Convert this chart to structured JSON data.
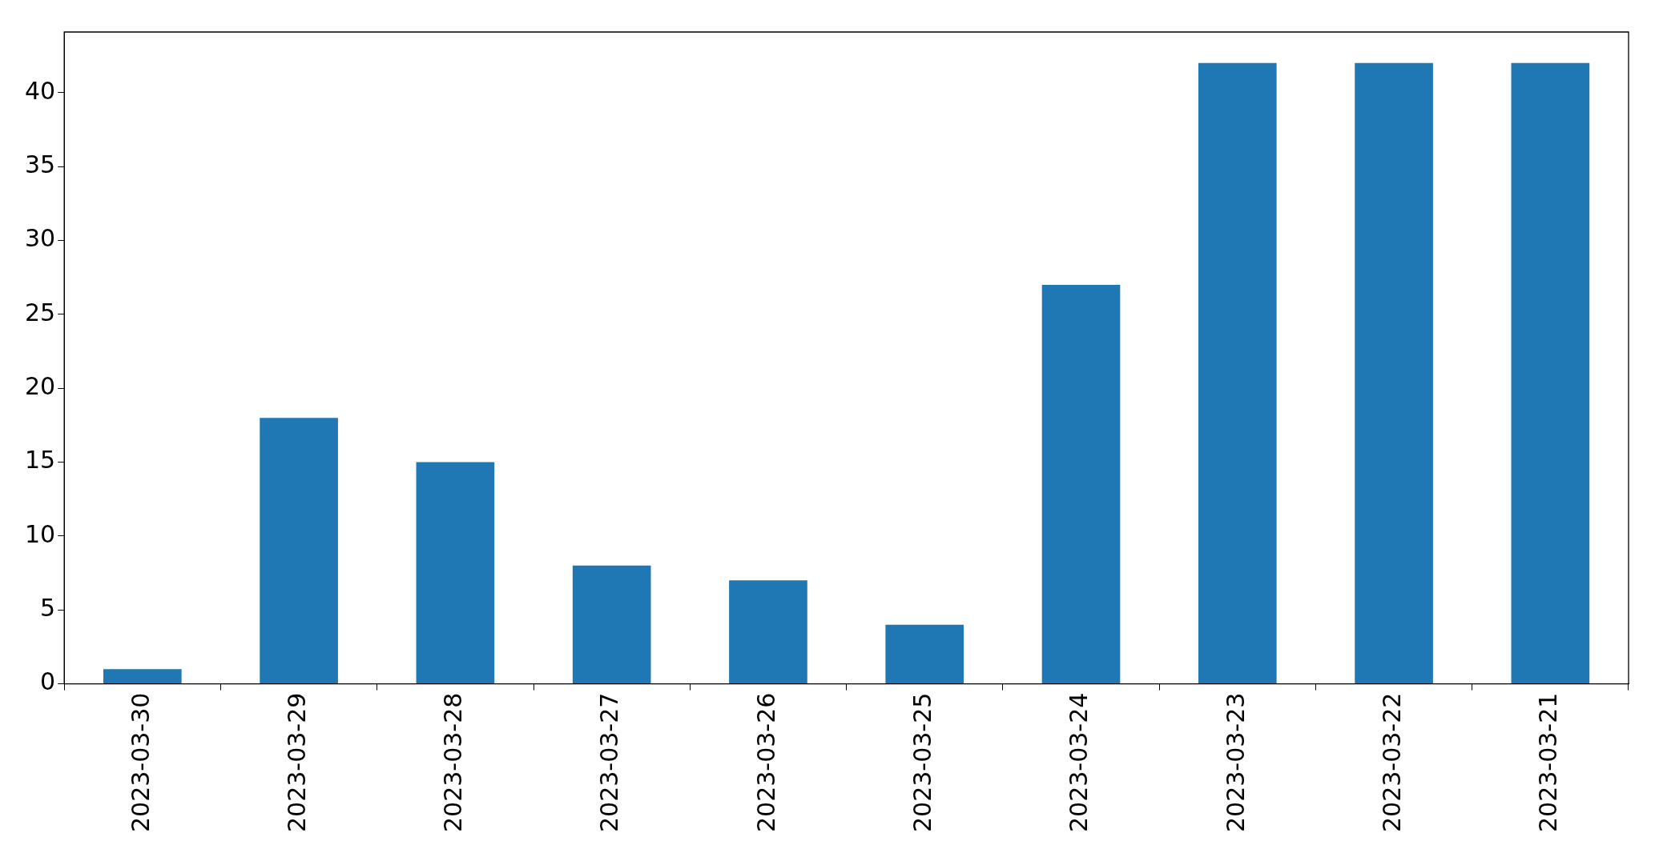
{
  "chart_data": {
    "type": "bar",
    "categories": [
      "2023-03-30",
      "2023-03-29",
      "2023-03-28",
      "2023-03-27",
      "2023-03-26",
      "2023-03-25",
      "2023-03-24",
      "2023-03-23",
      "2023-03-22",
      "2023-03-21"
    ],
    "values": [
      1,
      18,
      15,
      8,
      7,
      4,
      27,
      42,
      42,
      42
    ],
    "color": "#1f77b4",
    "ylim": [
      0,
      44.1
    ],
    "yticks": [
      0,
      5,
      10,
      15,
      20,
      25,
      30,
      35,
      40
    ],
    "grid": false,
    "legend": false
  }
}
